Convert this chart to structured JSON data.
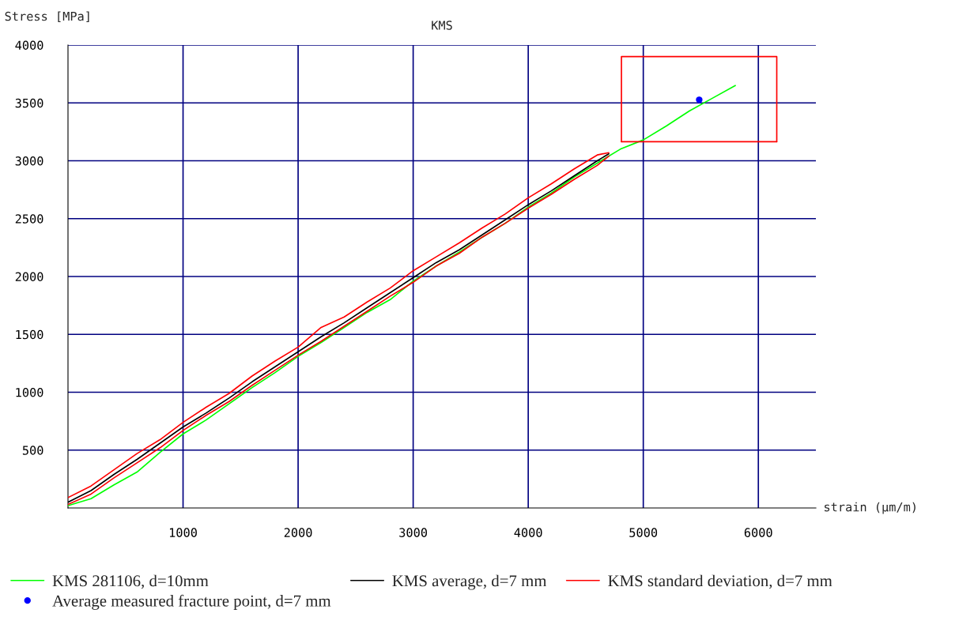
{
  "chart_data": {
    "type": "line",
    "title": "KMS",
    "xlabel": "strain (µm/m)",
    "ylabel": "Stress [MPa]",
    "xlim": [
      0,
      6500
    ],
    "ylim": [
      0,
      4000
    ],
    "xticks": [
      1000,
      2000,
      3000,
      4000,
      5000,
      6000
    ],
    "yticks": [
      500,
      1000,
      1500,
      2000,
      2500,
      3000,
      3500,
      4000
    ],
    "grid": true,
    "legend": "bottom",
    "series": [
      {
        "name": "KMS 281106, d=10mm",
        "color": "#00ff00",
        "x": [
          0,
          200,
          400,
          600,
          800,
          1000,
          1200,
          1400,
          1600,
          1800,
          2000,
          2200,
          2400,
          2600,
          2800,
          3000,
          3200,
          3400,
          3600,
          3800,
          4000,
          4200,
          4400,
          4600,
          4800,
          5000,
          5200,
          5400,
          5600,
          5800
        ],
        "values": [
          20,
          80,
          200,
          310,
          480,
          640,
          760,
          900,
          1040,
          1170,
          1310,
          1430,
          1560,
          1690,
          1800,
          1960,
          2090,
          2210,
          2340,
          2460,
          2600,
          2720,
          2860,
          2980,
          3100,
          3180,
          3300,
          3430,
          3540,
          3650
        ]
      },
      {
        "name": "Average measured fracture point, d=7 mm",
        "type": "scatter",
        "marker": "circle",
        "color": "#0000ff",
        "x": [
          5486
        ],
        "values": [
          3527
        ]
      },
      {
        "name": "KMS average, d=7 mm",
        "color": "#000000",
        "x": [
          0,
          200,
          400,
          600,
          800,
          1000,
          1200,
          1400,
          1600,
          1800,
          2000,
          2200,
          2400,
          2600,
          2800,
          3000,
          3200,
          3400,
          3600,
          3800,
          4000,
          4200,
          4400,
          4600,
          4700
        ],
        "values": [
          50,
          150,
          290,
          420,
          560,
          700,
          820,
          950,
          1090,
          1220,
          1350,
          1480,
          1600,
          1730,
          1860,
          1990,
          2120,
          2230,
          2360,
          2490,
          2620,
          2740,
          2870,
          3000,
          3060
        ]
      },
      {
        "name": "KMS standard deviation, d=7 mm",
        "color": "#ff0000",
        "x": [
          0,
          200,
          400,
          600,
          800,
          1000,
          1200,
          1400,
          1600,
          1800,
          2000,
          2200,
          2400,
          2600,
          2800,
          3000,
          3200,
          3400,
          3600,
          3800,
          4000,
          4200,
          4400,
          4600,
          4700
        ],
        "values": [
          90,
          190,
          330,
          470,
          590,
          740,
          870,
          990,
          1140,
          1270,
          1390,
          1560,
          1650,
          1780,
          1900,
          2050,
          2170,
          2290,
          2420,
          2540,
          2680,
          2800,
          2930,
          3050,
          3070
        ]
      },
      {
        "color": "#ff0000",
        "x": [
          0,
          200,
          400,
          600,
          800,
          1000,
          1200,
          1400,
          1600,
          1800,
          2000,
          2200,
          2400,
          2600,
          2800,
          3000,
          3200,
          3400,
          3600,
          3800,
          4000,
          4200,
          4400,
          4600,
          4700
        ],
        "values": [
          30,
          120,
          260,
          390,
          520,
          670,
          800,
          920,
          1060,
          1190,
          1320,
          1440,
          1570,
          1700,
          1830,
          1950,
          2090,
          2200,
          2340,
          2460,
          2590,
          2710,
          2840,
          2960,
          3040
        ]
      },
      {
        "color": "#ff0000",
        "x": [
          4810,
          4810,
          6160,
          6160
        ],
        "values": [
          3165,
          3900,
          3900,
          3165
        ]
      },
      {
        "color": "#ff0000",
        "x": [
          4810,
          6160
        ],
        "values": [
          3165,
          3165
        ]
      }
    ]
  }
}
